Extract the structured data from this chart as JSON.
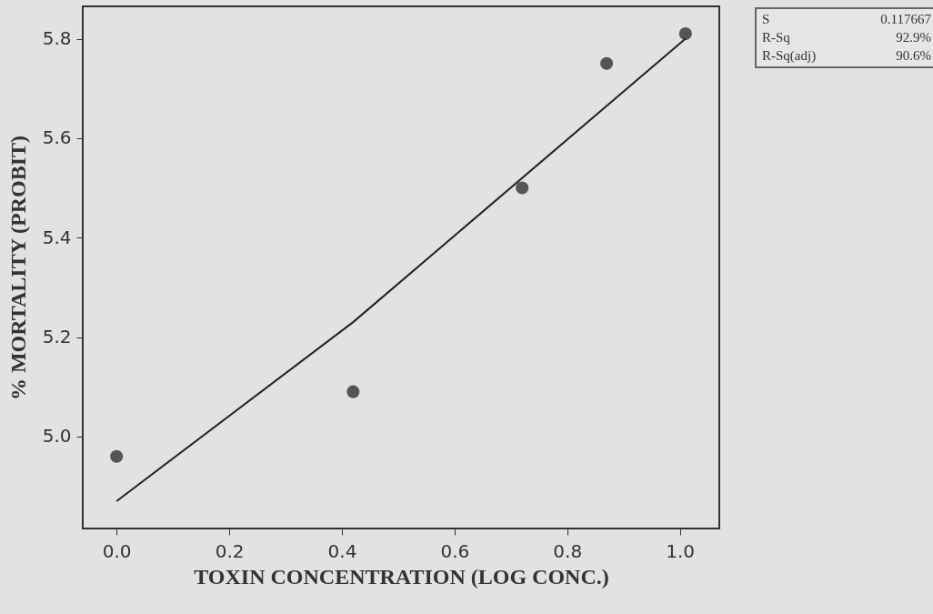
{
  "chart_data": {
    "type": "scatter",
    "xlabel": "TOXIN CONCENTRATION (LOG CONC.)",
    "ylabel": "% MORTALITY (PROBIT)",
    "xlim": [
      -0.06,
      1.07
    ],
    "ylim": [
      4.815,
      5.865
    ],
    "xticks": [
      {
        "value": 0,
        "label": "0.0"
      },
      0.2,
      0.4,
      0.6,
      0.8,
      {
        "value": 1,
        "label": "1.0"
      }
    ],
    "yticks": [
      {
        "value": 5,
        "label": "5.0"
      },
      5.2,
      5.4,
      5.6,
      5.8
    ],
    "x": [
      0.0,
      0.42,
      0.72,
      0.87,
      1.01
    ],
    "marker": "circle",
    "series": [
      {
        "color": "#555555",
        "values": [
          4.96,
          5.09,
          5.5,
          5.75,
          5.81
        ]
      },
      {
        "type": "line",
        "marker": "none",
        "color": "#222222",
        "x": [
          0.0,
          0.42,
          1.01
        ],
        "values": [
          4.87,
          5.23,
          5.8
        ]
      }
    ],
    "grid": false,
    "annotations": [
      "S",
      "0.117667",
      "R-Sq",
      "92.9%",
      "R-Sq(adj)",
      "90.6%"
    ]
  }
}
